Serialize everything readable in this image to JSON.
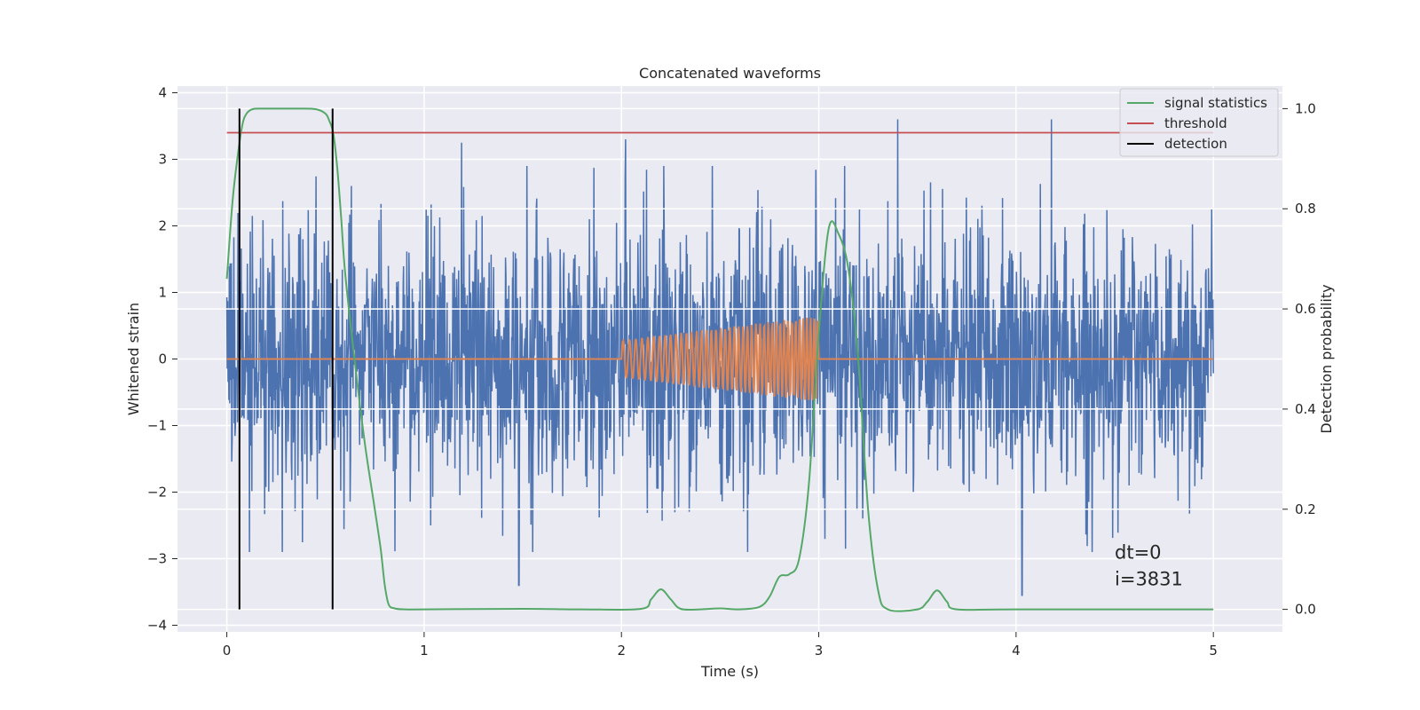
{
  "chart_data": {
    "type": "line",
    "title": "Concatenated waveforms",
    "xlabel": "Time (s)",
    "ylabel": "Whitened strain",
    "y2label": "Detection probability",
    "xlim": [
      -0.25,
      5.35
    ],
    "ylim": [
      -4.1,
      4.1
    ],
    "y2lim": [
      -0.045,
      1.045
    ],
    "xticks": [
      0,
      1,
      2,
      3,
      4,
      5
    ],
    "yticks": [
      -4,
      -3,
      -2,
      -1,
      0,
      1,
      2,
      3,
      4
    ],
    "y2ticks": [
      0.0,
      0.2,
      0.4,
      0.6,
      0.8,
      1.0
    ],
    "y2tick_labels": [
      "0.0",
      "0.2",
      "0.4",
      "0.6",
      "0.8",
      "1.0"
    ],
    "ytick_labels": [
      "−4",
      "−3",
      "−2",
      "−1",
      "0",
      "1",
      "2",
      "3",
      "4"
    ],
    "grid": true,
    "legend_placement": "upper-right",
    "annotations": [
      "dt=0",
      "i=3831"
    ],
    "series": [
      {
        "name": "whitened strain",
        "axis": "left",
        "color": "#4c72b0",
        "description_kind": "noise",
        "x_range": [
          0,
          5
        ],
        "typical_amplitude": 2.3,
        "notable_peaks": [
          {
            "x": 1.19,
            "y": 3.25
          },
          {
            "x": 2.02,
            "y": 3.3
          },
          {
            "x": 3.4,
            "y": 3.6
          },
          {
            "x": 4.18,
            "y": 3.6
          },
          {
            "x": 1.48,
            "y": -3.4
          },
          {
            "x": 4.03,
            "y": -3.55
          }
        ]
      },
      {
        "name": "injected waveform",
        "axis": "left",
        "color": "#dd8452",
        "x_range": [
          0,
          5
        ],
        "chirp_start": 2.0,
        "chirp_end": 3.0,
        "amplitude_start": 0.28,
        "amplitude_end": 0.65,
        "freq_start": 30,
        "freq_end": 55
      },
      {
        "name": "signal statistics",
        "axis": "right",
        "color": "#55a868",
        "x": [
          0,
          0.03,
          0.06,
          0.08,
          0.1,
          0.13,
          0.18,
          0.25,
          0.35,
          0.45,
          0.5,
          0.52,
          0.54,
          0.56,
          0.58,
          0.6,
          0.65,
          0.7,
          0.75,
          0.78,
          0.8,
          0.82,
          0.85,
          0.9,
          1.0,
          1.5,
          1.8,
          2.1,
          2.15,
          2.2,
          2.25,
          2.3,
          2.4,
          2.5,
          2.6,
          2.7,
          2.75,
          2.8,
          2.85,
          2.9,
          2.95,
          3.0,
          3.05,
          3.1,
          3.15,
          3.2,
          3.25,
          3.3,
          3.35,
          3.5,
          3.55,
          3.6,
          3.65,
          3.7,
          4.0,
          5.0
        ],
        "y": [
          0.66,
          0.82,
          0.92,
          0.97,
          0.99,
          0.999,
          1.0,
          1.0,
          1.0,
          0.999,
          0.99,
          0.975,
          0.95,
          0.88,
          0.78,
          0.67,
          0.49,
          0.33,
          0.2,
          0.12,
          0.05,
          0.01,
          0.002,
          0.0,
          0.0,
          0.001,
          0.0,
          0.001,
          0.02,
          0.04,
          0.02,
          0.001,
          0.0,
          0.002,
          0.0,
          0.005,
          0.025,
          0.065,
          0.07,
          0.1,
          0.25,
          0.55,
          0.76,
          0.75,
          0.68,
          0.5,
          0.2,
          0.04,
          0.0,
          0.0,
          0.015,
          0.038,
          0.015,
          0.0,
          0.0,
          0.0
        ]
      },
      {
        "name": "threshold",
        "axis": "right",
        "color": "#c44e52",
        "x": [
          0,
          5
        ],
        "y": [
          0.952,
          0.952
        ]
      },
      {
        "name": "detection",
        "axis": "right",
        "color": "#000000",
        "vlines": [
          0.064,
          0.536
        ]
      }
    ],
    "legend": [
      "signal statistics",
      "threshold",
      "detection"
    ]
  }
}
